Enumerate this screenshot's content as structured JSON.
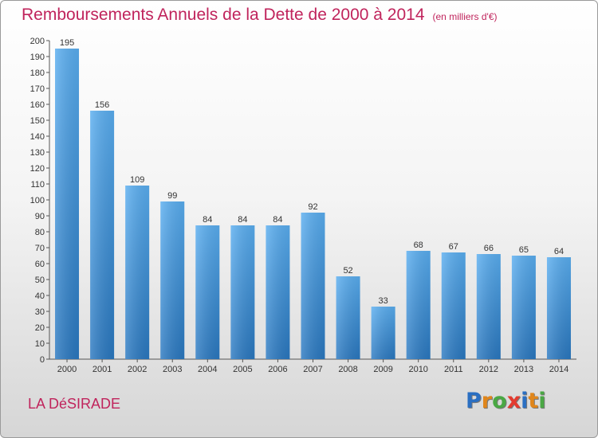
{
  "header": {
    "title": "Remboursements Annuels de la Dette de 2000 à 2014",
    "unit": "(en milliers d'€)"
  },
  "footer": {
    "place": "LA DéSIRADE",
    "logo": "Proxiti"
  },
  "colors": {
    "title": "#c0245c",
    "bar_top": "#5aaef0",
    "bar_bottom": "#2a78c0",
    "logo_letters": [
      "#2b6fc2",
      "#e0861b",
      "#4aa844",
      "#e33b2f",
      "#2b6fc2",
      "#e0861b",
      "#4aa844"
    ]
  },
  "chart_data": {
    "type": "bar",
    "title": "Remboursements Annuels de la Dette de 2000 à 2014",
    "categories": [
      "2000",
      "2001",
      "2002",
      "2003",
      "2004",
      "2005",
      "2006",
      "2007",
      "2008",
      "2009",
      "2010",
      "2011",
      "2012",
      "2013",
      "2014"
    ],
    "values": [
      195,
      156,
      109,
      99,
      84,
      84,
      84,
      92,
      52,
      33,
      68,
      67,
      66,
      65,
      64
    ],
    "ylim": [
      0,
      200
    ],
    "yticks": [
      "0",
      "10",
      "20",
      "30",
      "40",
      "50",
      "60",
      "70",
      "80",
      "90",
      "100",
      "110",
      "120",
      "130",
      "140",
      "150",
      "160",
      "170",
      "180",
      "190",
      "200"
    ],
    "grid": false,
    "xlabel": "",
    "ylabel": ""
  }
}
